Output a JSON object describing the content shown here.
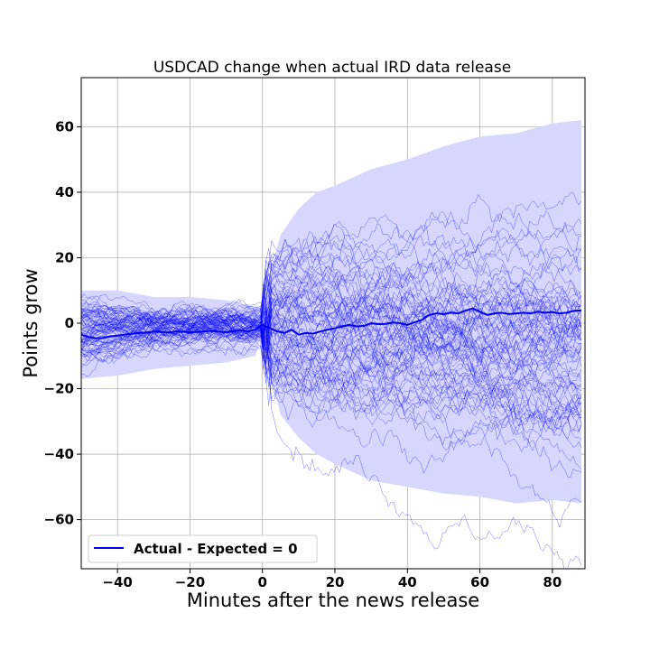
{
  "chart_data": {
    "type": "line",
    "title": "USDCAD change when actual IRD data release",
    "xlabel": "Minutes after the news release",
    "ylabel": "Points grow",
    "xlim": [
      -50,
      89
    ],
    "ylim": [
      -75,
      75
    ],
    "xticks": [
      -40,
      -20,
      0,
      20,
      40,
      60,
      80
    ],
    "xtick_labels": [
      "−40",
      "−20",
      "0",
      "20",
      "40",
      "60",
      "80"
    ],
    "yticks": [
      60,
      40,
      20,
      0,
      -20,
      -40,
      -60
    ],
    "ytick_labels": [
      "60",
      "40",
      "20",
      "0",
      "−20",
      "−40",
      "−60"
    ],
    "grid": true,
    "legend": {
      "location": "lower-left",
      "entries": [
        "Actual - Expected = 0"
      ]
    },
    "colors": {
      "mean_line": "#0000ee",
      "band_fill": "#d6d6ff",
      "trace": "#0000ff",
      "grid": "#b0b0b0"
    },
    "band": {
      "x": [
        -50,
        -40,
        -30,
        -20,
        -10,
        -2,
        0,
        2,
        5,
        10,
        15,
        20,
        30,
        40,
        50,
        60,
        70,
        80,
        88
      ],
      "upper": [
        10,
        10,
        8,
        8,
        7,
        5,
        3,
        15,
        27,
        35,
        40,
        42,
        47,
        50,
        54,
        57,
        58,
        61,
        62
      ],
      "lower": [
        -17,
        -16,
        -14,
        -13,
        -12,
        -10,
        -3,
        -15,
        -28,
        -35,
        -40,
        -43,
        -48,
        -50,
        -52,
        -53,
        -55,
        -54,
        -55
      ]
    },
    "series": [
      {
        "name": "Actual - Expected = 0",
        "x": [
          -50,
          -48,
          -46,
          -44,
          -42,
          -40,
          -38,
          -36,
          -34,
          -32,
          -30,
          -28,
          -26,
          -24,
          -22,
          -20,
          -18,
          -16,
          -14,
          -12,
          -10,
          -8,
          -6,
          -4,
          -2,
          0,
          2,
          4,
          6,
          8,
          10,
          12,
          14,
          16,
          18,
          20,
          22,
          24,
          26,
          28,
          30,
          32,
          34,
          36,
          38,
          40,
          42,
          44,
          46,
          48,
          50,
          52,
          54,
          56,
          58,
          60,
          62,
          64,
          66,
          68,
          70,
          72,
          74,
          76,
          78,
          80,
          82,
          84,
          86,
          88
        ],
        "y": [
          -3.5,
          -4.2,
          -4.6,
          -4.5,
          -4.0,
          -3.8,
          -3.5,
          -3.2,
          -3.0,
          -2.8,
          -2.6,
          -2.7,
          -2.9,
          -2.5,
          -2.6,
          -2.8,
          -2.7,
          -2.5,
          -2.3,
          -2.6,
          -2.8,
          -2.4,
          -2.2,
          -2.5,
          -2.0,
          -0.5,
          -1.5,
          -2.5,
          -3.0,
          -2.0,
          -3.5,
          -3.0,
          -3.2,
          -2.5,
          -2.0,
          -1.5,
          -1.0,
          -0.5,
          -1.0,
          -0.8,
          0.0,
          -0.3,
          -0.2,
          0.2,
          0.0,
          -0.5,
          0.3,
          1.0,
          2.5,
          3.0,
          2.8,
          3.2,
          3.0,
          3.8,
          4.5,
          3.5,
          2.5,
          3.0,
          3.2,
          2.8,
          3.0,
          3.2,
          3.0,
          3.5,
          3.2,
          3.4,
          3.0,
          3.2,
          3.8,
          3.9
        ]
      }
    ]
  }
}
